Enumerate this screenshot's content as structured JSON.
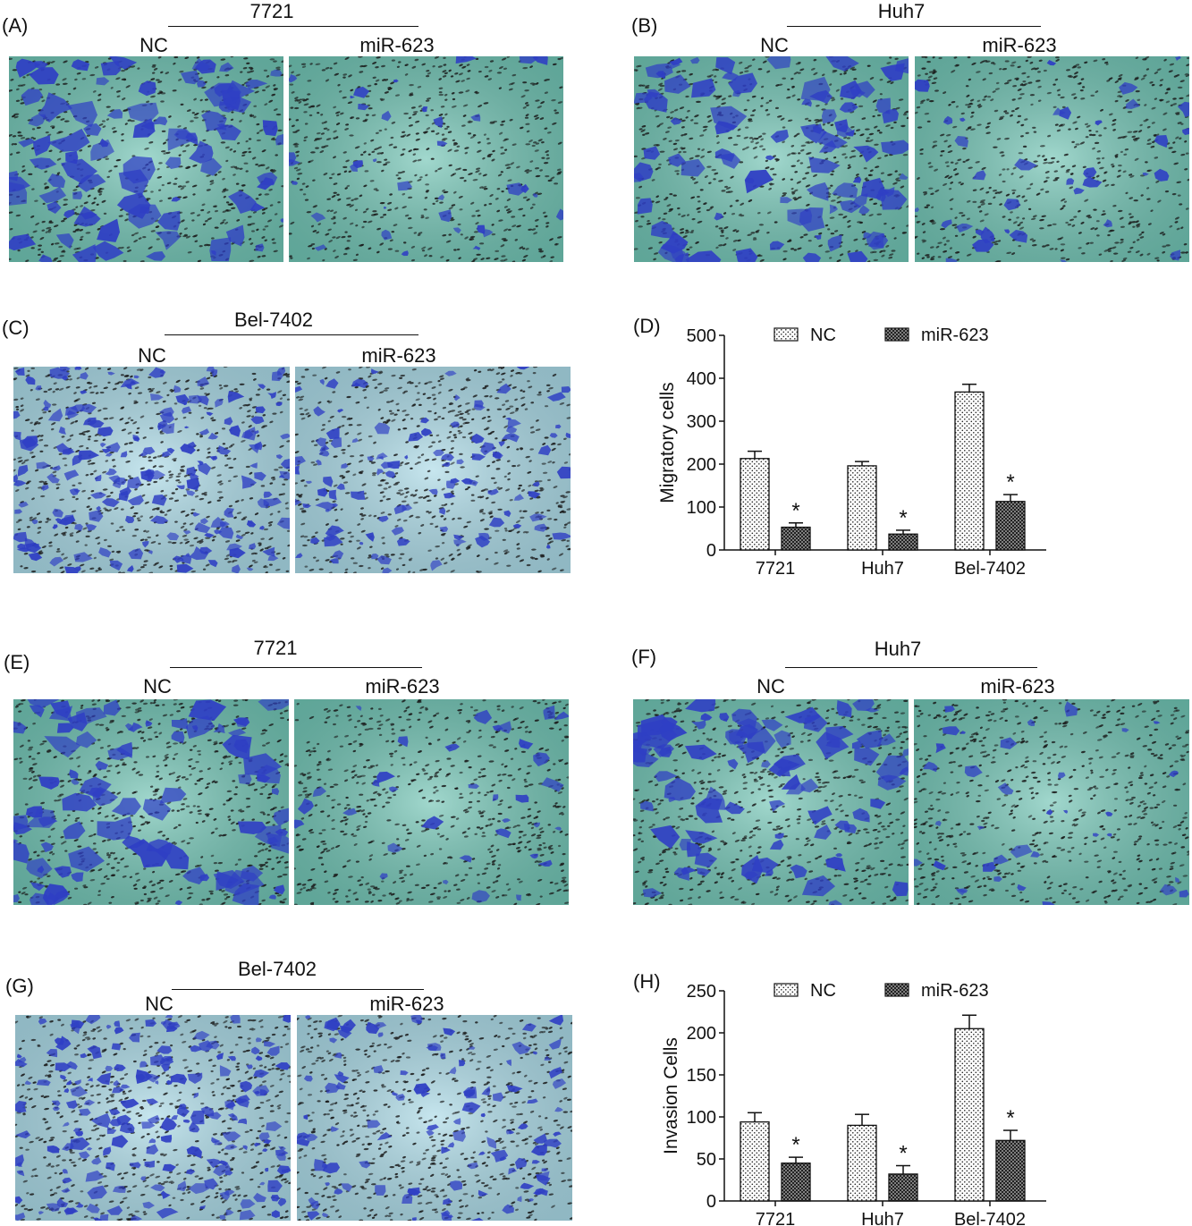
{
  "panels": [
    {
      "letter": "(A)",
      "cell_line": "7721",
      "left_group": "NC",
      "right_group": "miR-623",
      "tone": "teal"
    },
    {
      "letter": "(B)",
      "cell_line": "Huh7",
      "left_group": "NC",
      "right_group": "miR-623",
      "tone": "teal"
    },
    {
      "letter": "(C)",
      "cell_line": "Bel-7402",
      "left_group": "NC",
      "right_group": "miR-623",
      "tone": "light"
    },
    {
      "letter": "(E)",
      "cell_line": "7721",
      "left_group": "NC",
      "right_group": "miR-623",
      "tone": "teal"
    },
    {
      "letter": "(F)",
      "cell_line": "Huh7",
      "left_group": "NC",
      "right_group": "miR-623",
      "tone": "teal"
    },
    {
      "letter": "(G)",
      "cell_line": "Bel-7402",
      "left_group": "NC",
      "right_group": "miR-623",
      "tone": "light"
    }
  ],
  "colors": {
    "membrane_teal": "#6fc3b3",
    "membrane_light": "#a9d9e6",
    "stain": "#2f3fc4",
    "pore": "#1a1a1a"
  },
  "chart_data": [
    {
      "letter": "(D)",
      "type": "bar",
      "categories": [
        "7721",
        "Huh7",
        "Bel-7402"
      ],
      "series": [
        {
          "name": "NC",
          "values": [
            213,
            196,
            368
          ],
          "errors": [
            17,
            10,
            18
          ]
        },
        {
          "name": "miR-623",
          "values": [
            53,
            37,
            113
          ],
          "errors": [
            10,
            9,
            16
          ]
        }
      ],
      "significance": [
        "*",
        "*",
        "*"
      ],
      "ylabel": "Migratory cells",
      "xlabel": "",
      "ylim": [
        0,
        500
      ],
      "yticks": [
        "0",
        "100",
        "200",
        "300",
        "400",
        "500"
      ],
      "grid": false,
      "legend": "top"
    },
    {
      "letter": "(H)",
      "type": "bar",
      "categories": [
        "7721",
        "Huh7",
        "Bel-7402"
      ],
      "series": [
        {
          "name": "NC",
          "values": [
            94,
            90,
            205
          ],
          "errors": [
            11,
            13,
            16
          ]
        },
        {
          "name": "miR-623",
          "values": [
            45,
            32,
            72
          ],
          "errors": [
            7,
            10,
            12
          ]
        }
      ],
      "significance": [
        "*",
        "*",
        "*"
      ],
      "ylabel": "Invasion Cells",
      "xlabel": "",
      "ylim": [
        0,
        250
      ],
      "yticks": [
        "0",
        "50",
        "100",
        "150",
        "200",
        "250"
      ],
      "grid": false,
      "legend": "top"
    }
  ]
}
